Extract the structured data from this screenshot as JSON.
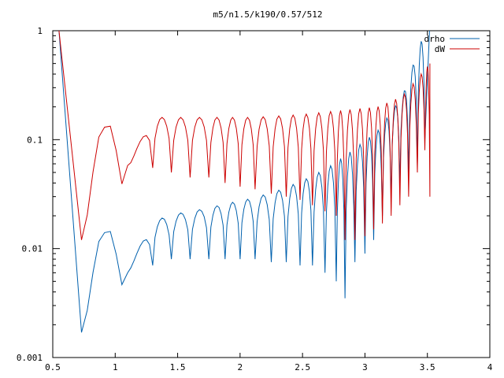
{
  "title": "m5/n1.5/k190/0.57/512",
  "colors": {
    "background": "#ffffff",
    "axis": "#000000",
    "drho": "#0060ad",
    "dW": "#cc0000"
  },
  "chart_data": {
    "type": "line",
    "title": "m5/n1.5/k190/0.57/512",
    "xlabel": "",
    "ylabel": "",
    "xlim": [
      0.5,
      4
    ],
    "ylim": [
      0.001,
      1
    ],
    "yscale": "log",
    "grid": false,
    "legend_position": "top-right",
    "x_ticks": [
      0.5,
      1,
      1.5,
      2,
      2.5,
      3,
      3.5,
      4
    ],
    "x_tick_labels": [
      "0.5",
      "1",
      "1.5",
      "2",
      "2.5",
      "3",
      "3.5",
      "4"
    ],
    "y_ticks": [
      0.001,
      0.01,
      0.1,
      1
    ],
    "y_tick_labels": [
      "0.001",
      "0.01",
      "0.1",
      "1"
    ],
    "series": [
      {
        "name": "drho",
        "color": "#0060ad",
        "envelope_x": [
          0.55,
          0.65,
          0.73,
          0.85,
          0.97,
          1.1,
          1.3,
          1.5,
          1.7,
          1.9,
          2.1,
          2.3,
          2.5,
          2.7,
          2.9,
          3.1,
          3.3,
          3.45,
          3.52
        ],
        "envelope_y": [
          1.0,
          0.1,
          0.0017,
          0.012,
          0.016,
          0.0062,
          0.018,
          0.021,
          0.023,
          0.026,
          0.029,
          0.034,
          0.042,
          0.055,
          0.08,
          0.12,
          0.25,
          0.8,
          1.2
        ],
        "minima_x": [
          0.73,
          1.1,
          1.3,
          1.45,
          1.6,
          1.75,
          1.88,
          2.0,
          2.12,
          2.25,
          2.37,
          2.48,
          2.58,
          2.68,
          2.77,
          2.84,
          2.92,
          3.0,
          3.07,
          3.14,
          3.21,
          3.28,
          3.35,
          3.42,
          3.48
        ],
        "minima_y": [
          0.0017,
          0.006,
          0.007,
          0.008,
          0.008,
          0.008,
          0.008,
          0.008,
          0.008,
          0.0075,
          0.0075,
          0.007,
          0.007,
          0.006,
          0.005,
          0.0035,
          0.0075,
          0.009,
          0.012,
          0.02,
          0.03,
          0.04,
          0.05,
          0.06,
          0.1
        ]
      },
      {
        "name": "dW",
        "color": "#cc0000",
        "envelope_x": [
          0.55,
          0.65,
          0.73,
          0.85,
          0.97,
          1.1,
          1.3,
          1.5,
          1.7,
          1.9,
          2.1,
          2.3,
          2.5,
          2.7,
          2.9,
          3.1,
          3.3,
          3.45,
          3.52
        ],
        "envelope_y": [
          1.0,
          0.2,
          0.012,
          0.11,
          0.15,
          0.058,
          0.16,
          0.16,
          0.16,
          0.16,
          0.16,
          0.165,
          0.17,
          0.18,
          0.19,
          0.2,
          0.25,
          0.4,
          0.5
        ],
        "minima_x": [
          0.73,
          1.1,
          1.3,
          1.45,
          1.6,
          1.75,
          1.88,
          2.0,
          2.12,
          2.25,
          2.37,
          2.48,
          2.58,
          2.68,
          2.77,
          2.84,
          2.92,
          3.0,
          3.07,
          3.14,
          3.21,
          3.28,
          3.35,
          3.42,
          3.48,
          3.52
        ],
        "minima_y": [
          0.012,
          0.058,
          0.055,
          0.05,
          0.045,
          0.045,
          0.04,
          0.037,
          0.035,
          0.032,
          0.03,
          0.028,
          0.025,
          0.022,
          0.02,
          0.012,
          0.012,
          0.013,
          0.015,
          0.017,
          0.02,
          0.025,
          0.03,
          0.05,
          0.08,
          0.03
        ]
      }
    ]
  }
}
